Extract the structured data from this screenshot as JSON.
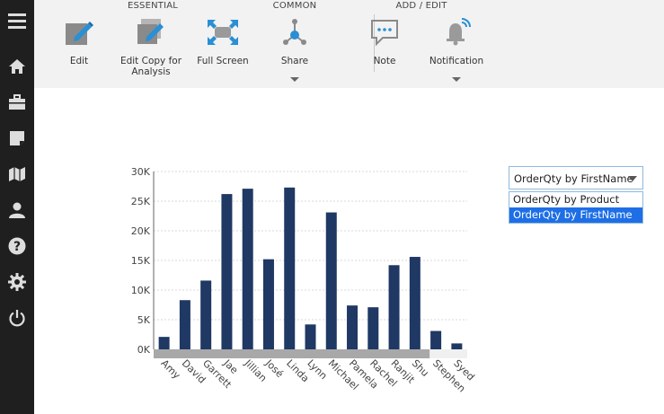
{
  "sidebar": {
    "items": [
      {
        "icon": "menu-icon"
      },
      {
        "icon": "home-icon"
      },
      {
        "icon": "briefcase-icon"
      },
      {
        "icon": "note-icon"
      },
      {
        "icon": "map-icon"
      },
      {
        "icon": "user-icon"
      },
      {
        "icon": "help-icon"
      },
      {
        "icon": "settings-icon"
      },
      {
        "icon": "power-icon"
      }
    ],
    "background": "#1f1f1f"
  },
  "toolbar": {
    "groups": {
      "essential": "ESSENTIAL",
      "common": "COMMON",
      "add_edit": "ADD / EDIT"
    },
    "buttons": {
      "edit": "Edit",
      "edit_copy": "Edit Copy for\nAnalysis",
      "full_screen": "Full Screen",
      "share": "Share",
      "note": "Note",
      "notification": "Notification"
    },
    "icon_color": "#2a8fd4"
  },
  "dropdown": {
    "selected": "OrderQty by FirstName",
    "options": [
      "OrderQty by Product",
      "OrderQty by FirstName"
    ],
    "highlight_color": "#1e6fe6"
  },
  "chart_data": {
    "type": "bar",
    "categories": [
      "Amy",
      "David",
      "Garrett",
      "Jae",
      "Jillian",
      "José",
      "Linda",
      "Lynn",
      "Michael",
      "Pamela",
      "Rachel",
      "Ranjit",
      "Shu",
      "Stephen",
      "Syed"
    ],
    "values": [
      2100,
      8300,
      11600,
      26200,
      27100,
      15200,
      27300,
      4200,
      23100,
      7400,
      7100,
      14200,
      15600,
      3100,
      1000
    ],
    "ylim": [
      0,
      30000
    ],
    "yticks": [
      "0K",
      "5K",
      "10K",
      "15K",
      "20K",
      "25K",
      "30K"
    ],
    "bar_color": "#1f3864",
    "grid": true,
    "title": "",
    "xlabel": "",
    "ylabel": ""
  }
}
